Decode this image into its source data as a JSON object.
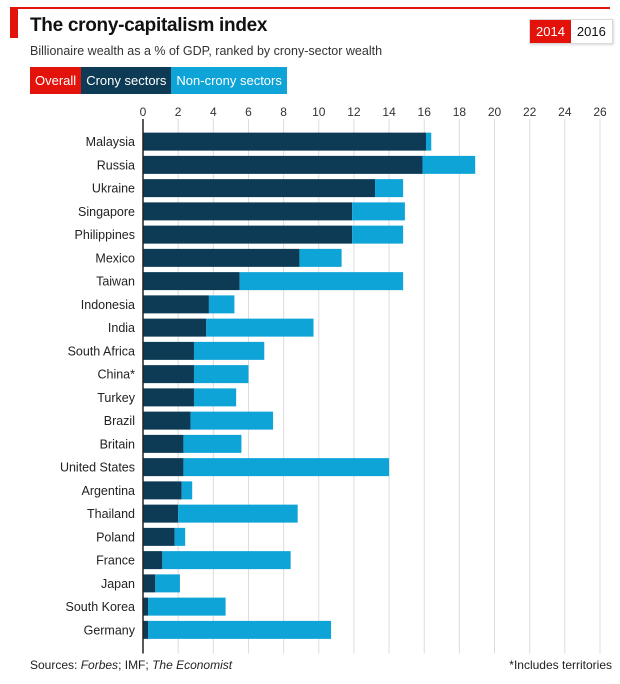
{
  "header": {
    "title": "The crony-capitalism index",
    "subtitle": "Billionaire wealth as a % of GDP, ranked by crony-sector wealth"
  },
  "year_toggle": [
    {
      "label": "2014",
      "active": true
    },
    {
      "label": "2016",
      "active": false
    }
  ],
  "legend": [
    {
      "label": "Overall",
      "color": "#e3120b"
    },
    {
      "label": "Crony sectors",
      "color": "#0d3a55"
    },
    {
      "label": "Non-crony sectors",
      "color": "#0ea4d8"
    }
  ],
  "footer": {
    "sources_prefix": "Sources: ",
    "source_1": "Forbes",
    "sep_1": "; IMF; ",
    "source_2": "The Economist",
    "note": "*Includes territories"
  },
  "colors": {
    "accent": "#e3120b",
    "crony": "#0d3a55",
    "noncrony": "#0ea4d8",
    "grid": "#dcdcdc"
  },
  "chart_data": {
    "type": "bar",
    "orientation": "horizontal",
    "stacked": true,
    "title": "The crony-capitalism index",
    "subtitle": "Billionaire wealth as a % of GDP, ranked by crony-sector wealth",
    "xlabel": "",
    "ylabel": "",
    "xlim": [
      0,
      26
    ],
    "xticks": [
      0,
      2,
      4,
      6,
      8,
      10,
      12,
      14,
      16,
      18,
      20,
      22,
      24,
      26
    ],
    "grid": true,
    "legend_position": "top-left",
    "categories": [
      "Malaysia",
      "Russia",
      "Ukraine",
      "Singapore",
      "Philippines",
      "Mexico",
      "Taiwan",
      "Indonesia",
      "India",
      "South Africa",
      "China*",
      "Turkey",
      "Brazil",
      "Britain",
      "United States",
      "Argentina",
      "Thailand",
      "Poland",
      "France",
      "Japan",
      "South Korea",
      "Germany"
    ],
    "series": [
      {
        "name": "Crony sectors",
        "values": [
          16.1,
          15.9,
          13.2,
          11.9,
          11.9,
          8.9,
          5.5,
          3.75,
          3.6,
          2.9,
          2.9,
          2.9,
          2.7,
          2.3,
          2.3,
          2.2,
          2.0,
          1.8,
          1.1,
          0.7,
          0.3,
          0.3
        ]
      },
      {
        "name": "Non-crony sectors",
        "values": [
          0.3,
          3.0,
          1.6,
          3.0,
          2.9,
          2.4,
          9.3,
          1.45,
          6.1,
          4.0,
          3.1,
          2.4,
          4.7,
          3.3,
          11.7,
          0.6,
          6.8,
          0.6,
          7.3,
          1.4,
          4.4,
          10.4
        ]
      }
    ]
  }
}
